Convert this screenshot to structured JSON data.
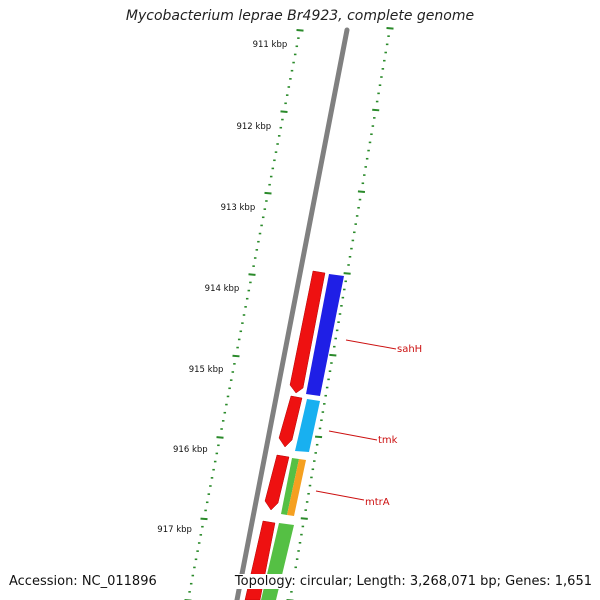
{
  "title": "Mycobacterium leprae Br4923, complete genome",
  "accession": "Accession: NC_011896",
  "summary": "Topology: circular; Length: 3,268,071 bp; Genes: 1,651",
  "scale_labels": [
    "911 kbp",
    "912 kbp",
    "913 kbp",
    "914 kbp",
    "915 kbp",
    "916 kbp",
    "917 kbp"
  ],
  "genes": [
    {
      "name": "sahH",
      "color": "#e8282a"
    },
    {
      "name": "tmk",
      "color": "#e8282a"
    },
    {
      "name": "mtrA",
      "color": "#e8282a"
    }
  ],
  "colors": {
    "backbone": "#808080",
    "tick": "#2a8a2a",
    "forward_cds": "#ee1111",
    "reverse_1": "#1f1fe6",
    "reverse_2": "#18b0f0",
    "reverse_3_a": "#55c044",
    "reverse_3_b": "#f5a020",
    "label_red": "#cc1111"
  }
}
